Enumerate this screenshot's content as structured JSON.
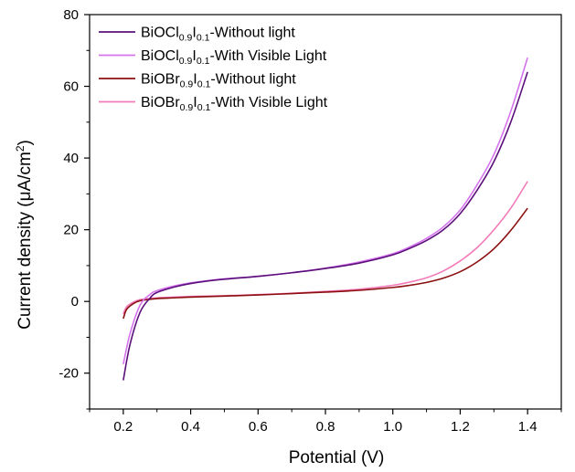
{
  "chart_data": {
    "type": "line",
    "xlabel": "Potential (V)",
    "ylabel": "Current density (μA/cm2)",
    "ylabel_parts": {
      "main": "Current density (",
      "unit": "μA/cm",
      "sup": "2",
      "close": ")"
    },
    "xlim": [
      0.1,
      1.5
    ],
    "ylim": [
      -30,
      80
    ],
    "x_ticks": [
      0.2,
      0.4,
      0.6,
      0.8,
      1.0,
      1.2,
      1.4
    ],
    "x_tick_labels": [
      "0.2",
      "0.4",
      "0.6",
      "0.8",
      "1.0",
      "1.2",
      "1.4"
    ],
    "y_ticks": [
      -20,
      0,
      20,
      40,
      60,
      80
    ],
    "y_tick_labels": [
      "-20",
      "0",
      "20",
      "40",
      "60",
      "80"
    ],
    "grid": false,
    "legend_position": "top-left",
    "series": [
      {
        "name": "BiOCl0.9I0.1-Without light",
        "label_parts": [
          {
            "t": "BiOCl",
            "sub": false
          },
          {
            "t": "0.9",
            "sub": true
          },
          {
            "t": "I",
            "sub": false
          },
          {
            "t": "0.1",
            "sub": true
          },
          {
            "t": "-Without light",
            "sub": false
          }
        ],
        "color": "#5b0f7a",
        "x": [
          0.2,
          0.22,
          0.25,
          0.28,
          0.3,
          0.35,
          0.4,
          0.45,
          0.5,
          0.6,
          0.7,
          0.8,
          0.9,
          1.0,
          1.05,
          1.1,
          1.15,
          1.2,
          1.25,
          1.3,
          1.35,
          1.4
        ],
        "y": [
          -22,
          -12,
          -3,
          1,
          2.5,
          4,
          5,
          5.7,
          6.2,
          7,
          8,
          9.2,
          10.7,
          13,
          14.8,
          17,
          20,
          24.5,
          31,
          39,
          50,
          64
        ]
      },
      {
        "name": "BiOCl0.9I0.1-With Visible Light",
        "label_parts": [
          {
            "t": "BiOCl",
            "sub": false
          },
          {
            "t": "0.9",
            "sub": true
          },
          {
            "t": "I",
            "sub": false
          },
          {
            "t": "0.1",
            "sub": true
          },
          {
            "t": "-With Visible Light",
            "sub": false
          }
        ],
        "color": "#d674ee",
        "x": [
          0.2,
          0.22,
          0.25,
          0.28,
          0.3,
          0.35,
          0.4,
          0.45,
          0.5,
          0.6,
          0.7,
          0.8,
          0.9,
          1.0,
          1.05,
          1.1,
          1.15,
          1.2,
          1.25,
          1.3,
          1.35,
          1.4
        ],
        "y": [
          -17.5,
          -9,
          -1,
          2,
          3,
          4.3,
          5.2,
          5.8,
          6.3,
          7,
          8,
          9.3,
          11,
          13.3,
          15.2,
          17.6,
          20.8,
          25.5,
          32.5,
          41,
          53,
          68
        ]
      },
      {
        "name": "BiOBr0.9I0.1-Without light",
        "label_parts": [
          {
            "t": "BiOBr",
            "sub": false
          },
          {
            "t": "0.9",
            "sub": true
          },
          {
            "t": "I",
            "sub": false
          },
          {
            "t": "0.1",
            "sub": true
          },
          {
            "t": "-Without light",
            "sub": false
          }
        ],
        "color": "#8b0f0f",
        "x": [
          0.2,
          0.21,
          0.23,
          0.25,
          0.28,
          0.3,
          0.35,
          0.4,
          0.5,
          0.6,
          0.7,
          0.8,
          0.9,
          1.0,
          1.05,
          1.1,
          1.15,
          1.2,
          1.25,
          1.3,
          1.35,
          1.4
        ],
        "y": [
          -4.8,
          -2.2,
          -0.6,
          0.2,
          0.6,
          0.8,
          1.0,
          1.2,
          1.5,
          1.8,
          2.2,
          2.6,
          3.1,
          3.9,
          4.5,
          5.3,
          6.5,
          8.3,
          11,
          14.7,
          19.8,
          26
        ]
      },
      {
        "name": "BiOBr0.9I0.1-With Visible Light",
        "label_parts": [
          {
            "t": "BiOBr",
            "sub": false
          },
          {
            "t": "0.9",
            "sub": true
          },
          {
            "t": "I",
            "sub": false
          },
          {
            "t": "0.1",
            "sub": true
          },
          {
            "t": "-With Visible Light",
            "sub": false
          }
        ],
        "color": "#f27ab8",
        "x": [
          0.2,
          0.21,
          0.23,
          0.25,
          0.28,
          0.3,
          0.35,
          0.4,
          0.5,
          0.6,
          0.7,
          0.8,
          0.9,
          1.0,
          1.05,
          1.1,
          1.15,
          1.2,
          1.25,
          1.3,
          1.35,
          1.4
        ],
        "y": [
          -3.5,
          -1.5,
          -0.2,
          0.5,
          0.8,
          1.0,
          1.2,
          1.4,
          1.6,
          1.9,
          2.3,
          2.8,
          3.4,
          4.5,
          5.4,
          6.6,
          8.5,
          11.3,
          15,
          20,
          26,
          33.5
        ]
      }
    ]
  }
}
